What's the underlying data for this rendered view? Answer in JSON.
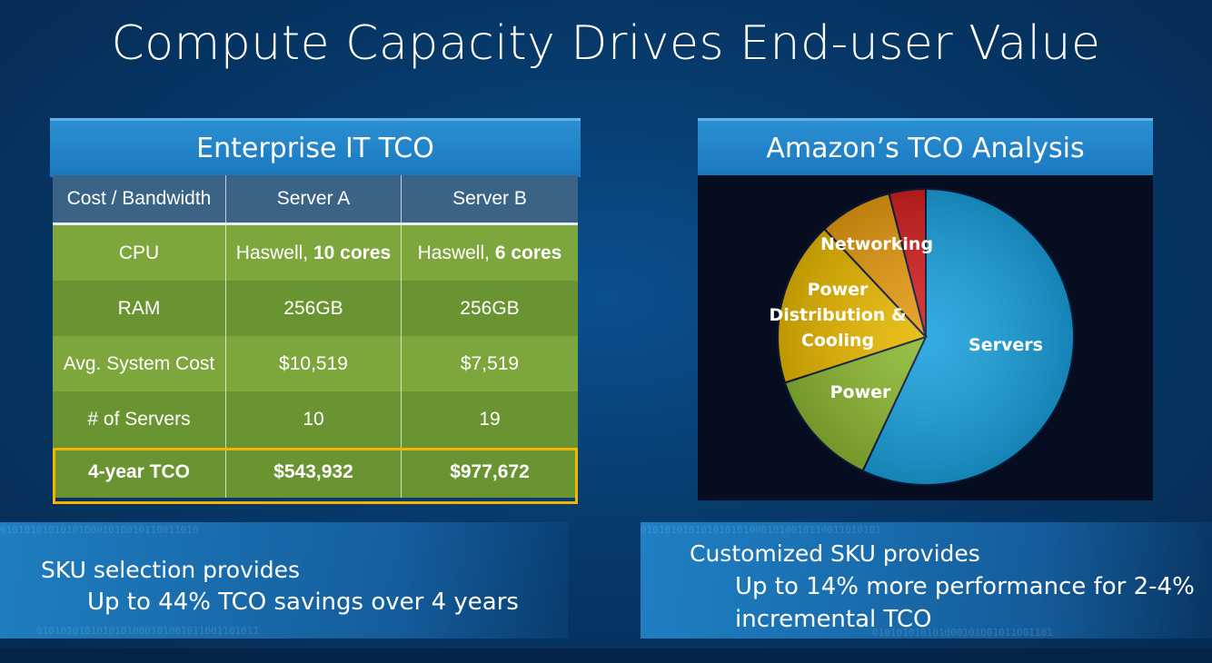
{
  "slide": {
    "title": "Compute Capacity Drives End-user Value"
  },
  "enterprise": {
    "header": "Enterprise IT TCO",
    "columns": [
      "Cost / Bandwidth",
      "Server A",
      "Server B"
    ],
    "rows": [
      {
        "label": "CPU",
        "a_prefix": "Haswell, ",
        "a_bold": "10 cores",
        "b_prefix": "Haswell, ",
        "b_bold": "6 cores"
      },
      {
        "label": "RAM",
        "a": "256GB",
        "b": "256GB"
      },
      {
        "label": "Avg. System Cost",
        "a": "$10,519",
        "b": "$7,519"
      },
      {
        "label": "# of Servers",
        "a": "10",
        "b": "19"
      }
    ],
    "total": {
      "label": "4-year TCO",
      "a": "$543,932",
      "b": "$977,672"
    }
  },
  "amazon": {
    "header": "Amazon’s TCO Analysis",
    "labels": {
      "networking": "Networking",
      "pdc_line1": "Power",
      "pdc_line2": "Distribution &",
      "pdc_line3": "Cooling",
      "power": "Power",
      "servers": "Servers"
    }
  },
  "chart_data": {
    "type": "pie",
    "slices": [
      {
        "label": "Servers",
        "value": 57,
        "color": "#1aa0dc"
      },
      {
        "label": "Power",
        "value": 13,
        "color": "#8cb832"
      },
      {
        "label": "Power Distribution & Cooling",
        "value": 18,
        "color": "#e8b800"
      },
      {
        "label": "Networking",
        "value": 8,
        "color": "#e69a10"
      },
      {
        "label": "",
        "value": 4,
        "color": "#d42020"
      }
    ]
  },
  "captions": {
    "left_head": "SKU selection provides",
    "left_body": "Up to 44% TCO savings over 4 years",
    "right_head": "Customized SKU provides",
    "right_body_line1": "Up to 14% more performance for 2-4%",
    "right_body_line2": "incremental TCO"
  },
  "binary": {
    "left_top": "010101010101010001010010110011010",
    "left_bottom": "0101010101010101000101001011001101011",
    "right_top": "0101010101010101010001010010110011010101",
    "right_bottom": "010101010101000101001011001101"
  }
}
